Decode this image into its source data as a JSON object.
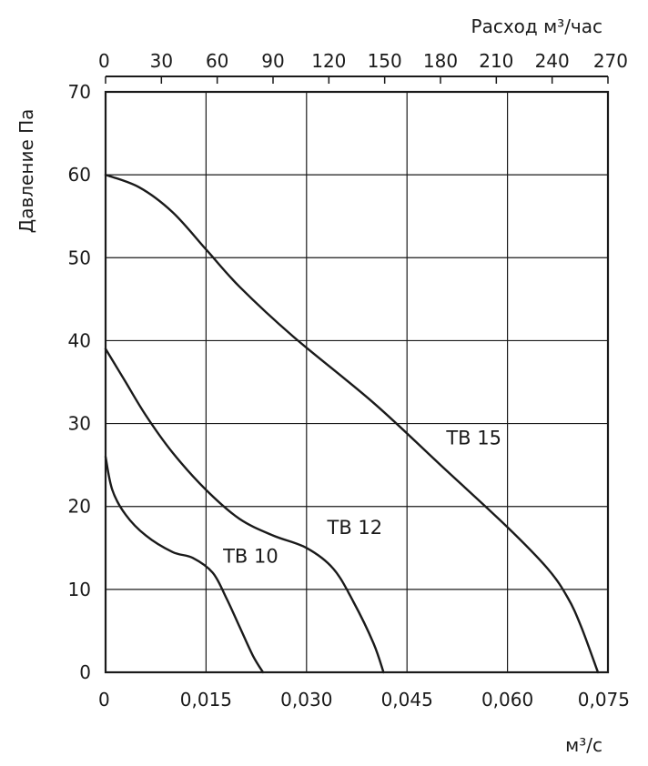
{
  "chart_data": {
    "type": "line",
    "xlabel": "м³/с",
    "x2label": "Расход м³/час",
    "ylabel": "Давление Па",
    "xlim": [
      0,
      0.075
    ],
    "x2lim": [
      0,
      270
    ],
    "ylim": [
      0,
      70
    ],
    "grid": true,
    "x_ticks": [
      "0",
      "0,015",
      "0,030",
      "0,045",
      "0,060",
      "0,075"
    ],
    "x2_ticks": [
      "0",
      "30",
      "60",
      "90",
      "120",
      "150",
      "180",
      "210",
      "240",
      "270"
    ],
    "y_ticks": [
      "0",
      "10",
      "20",
      "30",
      "40",
      "50",
      "60",
      "70"
    ],
    "series": [
      {
        "name": "ТВ 10",
        "x": [
          0,
          0.001,
          0.003,
          0.006,
          0.01,
          0.013,
          0.016,
          0.018,
          0.02,
          0.022,
          0.0235
        ],
        "y": [
          26,
          22,
          19,
          16.5,
          14.5,
          13.8,
          12,
          9,
          5.5,
          2,
          0
        ]
      },
      {
        "name": "ТВ 12",
        "x": [
          0,
          0.003,
          0.006,
          0.01,
          0.015,
          0.02,
          0.025,
          0.03,
          0.034,
          0.037,
          0.04,
          0.0415
        ],
        "y": [
          39,
          35,
          31,
          26.5,
          22,
          18.5,
          16.5,
          15,
          12.5,
          8.5,
          3.5,
          0
        ]
      },
      {
        "name": "ТВ 15",
        "x": [
          0,
          0.005,
          0.01,
          0.015,
          0.02,
          0.028,
          0.04,
          0.05,
          0.06,
          0.066,
          0.069,
          0.071,
          0.0735
        ],
        "y": [
          60,
          58.5,
          55.5,
          51,
          46.5,
          40.5,
          32.5,
          25,
          17.5,
          12.5,
          9,
          5.5,
          0
        ]
      }
    ]
  }
}
